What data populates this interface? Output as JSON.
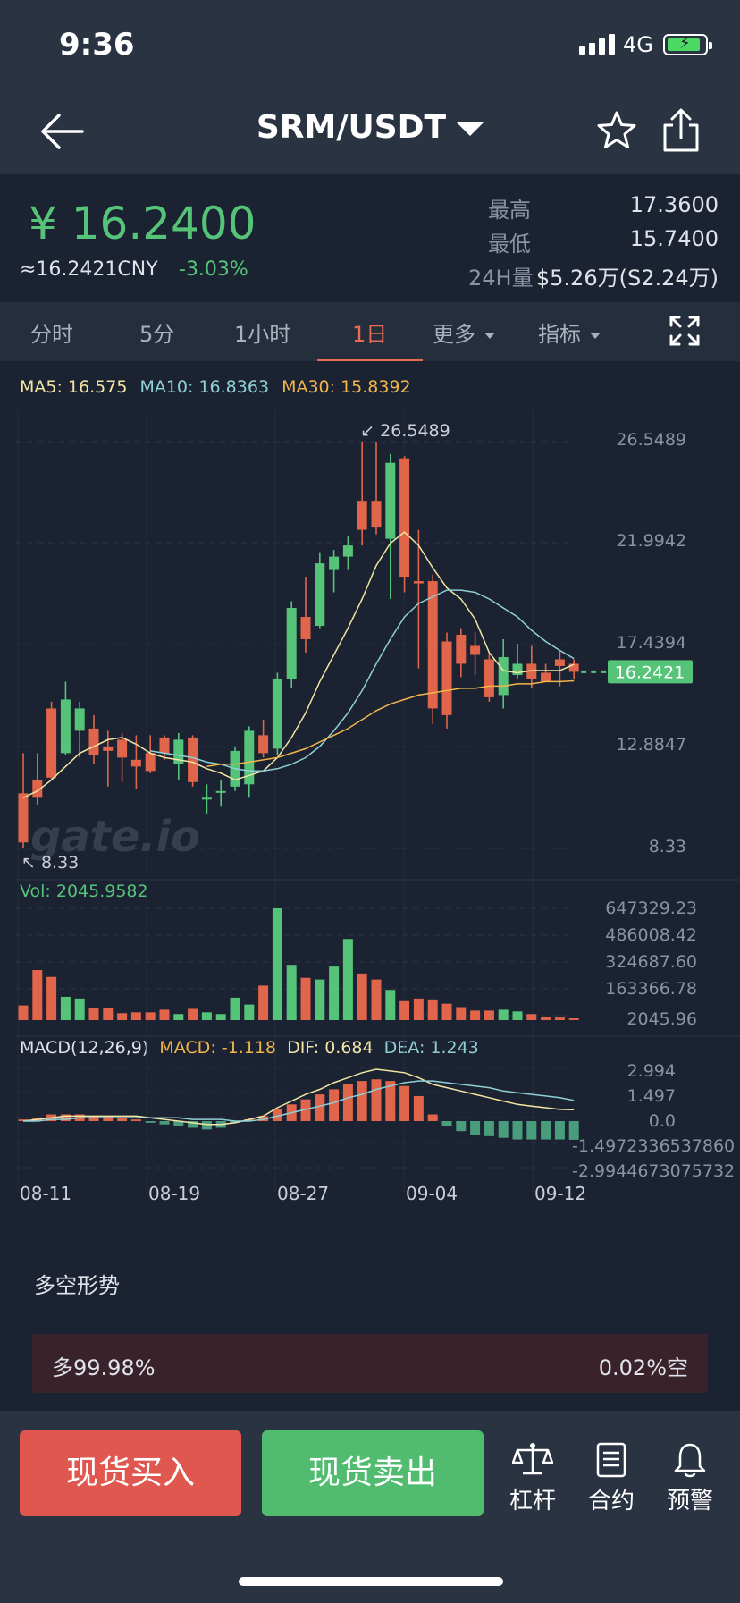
{
  "status_bar": {
    "time": "9:36",
    "network": "4G"
  },
  "nav": {
    "pair": "SRM/USDT"
  },
  "ticker": {
    "price": "¥ 16.2400",
    "cny": "≈16.2421CNY",
    "change": "-3.03%",
    "high_label": "最高",
    "high": "17.3600",
    "low_label": "最低",
    "low": "15.7400",
    "vol_label": "24H量",
    "vol": "$5.26万(S2.24万)"
  },
  "tabs": [
    {
      "label": "分时",
      "active": false
    },
    {
      "label": "5分",
      "active": false
    },
    {
      "label": "1小时",
      "active": false
    },
    {
      "label": "1日",
      "active": true
    },
    {
      "label": "更多",
      "active": false,
      "dropdown": true
    },
    {
      "label": "指标",
      "active": false,
      "dropdown": true
    }
  ],
  "chart_data": {
    "type": "candlestick",
    "ma_legend": {
      "ma5": "MA5: 16.575",
      "ma10": "MA10: 16.8363",
      "ma30": "MA30: 15.8392"
    },
    "price_axis": [
      "26.5489",
      "21.9942",
      "17.4394",
      "12.8847",
      "8.33"
    ],
    "high_marker": "26.5489",
    "low_marker": "8.33",
    "last_price": "16.2421",
    "watermark": "gate.io",
    "x_labels": [
      "08-11",
      "08-19",
      "08-27",
      "09-04",
      "09-12"
    ],
    "candles": [
      {
        "o": 10.8,
        "h": 12.6,
        "l": 8.33,
        "c": 8.6
      },
      {
        "o": 11.4,
        "h": 12.6,
        "l": 10.3,
        "c": 10.6
      },
      {
        "o": 14.6,
        "h": 14.9,
        "l": 11.4,
        "c": 11.5
      },
      {
        "o": 12.6,
        "h": 15.8,
        "l": 12.5,
        "c": 15.0
      },
      {
        "o": 13.6,
        "h": 14.9,
        "l": 12.4,
        "c": 14.6
      },
      {
        "o": 13.7,
        "h": 14.3,
        "l": 12.1,
        "c": 12.5
      },
      {
        "o": 12.9,
        "h": 13.6,
        "l": 11.1,
        "c": 12.7
      },
      {
        "o": 13.2,
        "h": 13.5,
        "l": 11.3,
        "c": 12.4
      },
      {
        "o": 12.3,
        "h": 13.4,
        "l": 11.0,
        "c": 12.0
      },
      {
        "o": 12.6,
        "h": 13.4,
        "l": 11.7,
        "c": 11.8
      },
      {
        "o": 13.3,
        "h": 13.4,
        "l": 12.3,
        "c": 12.6
      },
      {
        "o": 12.1,
        "h": 13.5,
        "l": 11.4,
        "c": 13.2
      },
      {
        "o": 13.3,
        "h": 13.4,
        "l": 11.1,
        "c": 11.3
      },
      {
        "o": 10.6,
        "h": 11.2,
        "l": 9.9,
        "c": 10.6
      },
      {
        "o": 10.9,
        "h": 11.4,
        "l": 10.2,
        "c": 10.9
      },
      {
        "o": 11.1,
        "h": 12.9,
        "l": 10.9,
        "c": 12.7
      },
      {
        "o": 11.2,
        "h": 13.8,
        "l": 10.6,
        "c": 13.6
      },
      {
        "o": 13.4,
        "h": 14.1,
        "l": 12.4,
        "c": 12.6
      },
      {
        "o": 12.8,
        "h": 16.2,
        "l": 12.5,
        "c": 15.9
      },
      {
        "o": 15.9,
        "h": 19.4,
        "l": 15.5,
        "c": 19.1
      },
      {
        "o": 18.7,
        "h": 20.5,
        "l": 17.1,
        "c": 17.7
      },
      {
        "o": 18.3,
        "h": 21.6,
        "l": 18.2,
        "c": 21.1
      },
      {
        "o": 20.8,
        "h": 21.7,
        "l": 19.8,
        "c": 21.4
      },
      {
        "o": 21.4,
        "h": 22.3,
        "l": 20.8,
        "c": 21.9
      },
      {
        "o": 23.9,
        "h": 26.5489,
        "l": 21.9,
        "c": 22.6
      },
      {
        "o": 23.9,
        "h": 26.5489,
        "l": 22.4,
        "c": 22.7
      },
      {
        "o": 22.2,
        "h": 26.0,
        "l": 19.5,
        "c": 25.6
      },
      {
        "o": 25.8,
        "h": 25.9,
        "l": 19.8,
        "c": 20.5
      },
      {
        "o": 20.3,
        "h": 22.6,
        "l": 16.4,
        "c": 20.2
      },
      {
        "o": 20.3,
        "h": 20.6,
        "l": 13.9,
        "c": 14.6
      },
      {
        "o": 17.6,
        "h": 18.0,
        "l": 13.7,
        "c": 14.3
      },
      {
        "o": 17.9,
        "h": 18.2,
        "l": 16.0,
        "c": 16.6
      },
      {
        "o": 17.4,
        "h": 18.0,
        "l": 16.1,
        "c": 17.0
      },
      {
        "o": 16.8,
        "h": 17.1,
        "l": 14.9,
        "c": 15.1
      },
      {
        "o": 15.2,
        "h": 17.7,
        "l": 14.6,
        "c": 16.9
      },
      {
        "o": 16.1,
        "h": 17.5,
        "l": 15.9,
        "c": 16.6
      },
      {
        "o": 16.6,
        "h": 17.4,
        "l": 15.5,
        "c": 15.9
      },
      {
        "o": 16.2,
        "h": 16.6,
        "l": 15.8,
        "c": 15.8
      },
      {
        "o": 16.8,
        "h": 17.2,
        "l": 15.6,
        "c": 16.5
      },
      {
        "o": 16.6,
        "h": 16.8,
        "l": 15.9,
        "c": 16.2421
      }
    ],
    "ma5": [
      10.6,
      10.9,
      11.4,
      12.0,
      12.6,
      12.9,
      13.2,
      13.3,
      13.0,
      12.6,
      12.4,
      12.3,
      12.2,
      11.9,
      11.7,
      11.4,
      11.6,
      11.8,
      12.4,
      13.3,
      14.4,
      15.8,
      17.0,
      18.2,
      19.5,
      21.0,
      22.0,
      22.5,
      21.9,
      20.9,
      20.0,
      19.5,
      18.6,
      17.1,
      16.3,
      16.2,
      16.3,
      16.3,
      16.3,
      16.575
    ],
    "ma10": [
      null,
      null,
      null,
      null,
      null,
      null,
      null,
      null,
      null,
      12.7,
      12.6,
      12.5,
      12.4,
      12.2,
      12.1,
      11.9,
      11.8,
      11.8,
      11.9,
      12.1,
      12.4,
      12.9,
      13.6,
      14.4,
      15.4,
      16.6,
      17.7,
      18.7,
      19.3,
      19.6,
      19.9,
      19.9,
      19.8,
      19.5,
      19.1,
      18.7,
      18.1,
      17.6,
      17.2,
      16.8363
    ],
    "ma30": [
      null,
      null,
      null,
      null,
      null,
      null,
      null,
      null,
      null,
      null,
      null,
      null,
      null,
      12.0,
      12.1,
      12.1,
      12.2,
      12.3,
      12.4,
      12.6,
      12.8,
      13.1,
      13.4,
      13.7,
      14.1,
      14.5,
      14.8,
      15.0,
      15.2,
      15.3,
      15.4,
      15.5,
      15.5,
      15.6,
      15.6,
      15.7,
      15.7,
      15.8,
      15.8,
      15.8392
    ],
    "volume_legend": "Vol: 2045.9582",
    "volume_axis": [
      "647329.23",
      "486008.42",
      "324687.60",
      "163366.78",
      "2045.96"
    ],
    "volumes": [
      85000,
      290000,
      250000,
      135000,
      125000,
      70000,
      70000,
      40000,
      45000,
      45000,
      60000,
      35000,
      65000,
      45000,
      35000,
      130000,
      90000,
      200000,
      647329,
      320000,
      245000,
      235000,
      310000,
      470000,
      270000,
      235000,
      175000,
      110000,
      125000,
      120000,
      95000,
      75000,
      55000,
      55000,
      60000,
      50000,
      35000,
      20000,
      15000,
      2045.96
    ],
    "macd_legend": {
      "title": "MACD(12,26,9)",
      "macd": "MACD: -1.118",
      "dif": "DIF: 0.684",
      "dea": "DEA: 1.243"
    },
    "macd_axis": [
      "2.994",
      "1.497",
      "0.0",
      "-1.4972336537860",
      "-2.9944673075732"
    ],
    "macd_hist": [
      0.1,
      0.2,
      0.4,
      0.4,
      0.4,
      0.3,
      0.3,
      0.2,
      0.1,
      -0.1,
      -0.2,
      -0.3,
      -0.4,
      -0.5,
      -0.4,
      -0.1,
      0.1,
      0.3,
      0.7,
      1.0,
      1.3,
      1.6,
      1.9,
      2.2,
      2.4,
      2.5,
      2.4,
      2.1,
      1.5,
      0.4,
      -0.3,
      -0.6,
      -0.8,
      -0.9,
      -1.0,
      -1.1,
      -1.1,
      -1.1,
      -1.1,
      -1.118
    ],
    "dif": [
      0.0,
      0.1,
      0.2,
      0.3,
      0.3,
      0.3,
      0.3,
      0.3,
      0.3,
      0.2,
      0.1,
      0.0,
      -0.1,
      -0.2,
      -0.2,
      -0.1,
      0.1,
      0.3,
      0.8,
      1.2,
      1.6,
      1.9,
      2.3,
      2.6,
      2.9,
      3.1,
      3.0,
      2.9,
      2.6,
      2.2,
      2.0,
      1.8,
      1.6,
      1.4,
      1.2,
      1.0,
      0.9,
      0.8,
      0.7,
      0.684
    ],
    "dea": [
      0.0,
      0.0,
      0.1,
      0.1,
      0.2,
      0.2,
      0.2,
      0.2,
      0.2,
      0.2,
      0.2,
      0.2,
      0.1,
      0.1,
      0.1,
      0.0,
      0.0,
      0.1,
      0.3,
      0.5,
      0.7,
      0.9,
      1.1,
      1.4,
      1.6,
      1.9,
      2.1,
      2.3,
      2.4,
      2.4,
      2.3,
      2.2,
      2.1,
      2.0,
      1.8,
      1.7,
      1.6,
      1.5,
      1.4,
      1.243
    ]
  },
  "long_short": {
    "title": "多空形势",
    "long": "多99.98%",
    "short": "0.02%空"
  },
  "bottom_bar": {
    "buy": "现货买入",
    "sell": "现货卖出",
    "leverage": "杠杆",
    "contract": "合约",
    "alert": "预警"
  },
  "colors": {
    "up": "#e0654a",
    "down": "#55c479",
    "ma5": "#f1e6a3",
    "ma10": "#8fd0d8",
    "ma30": "#f1b64a"
  }
}
